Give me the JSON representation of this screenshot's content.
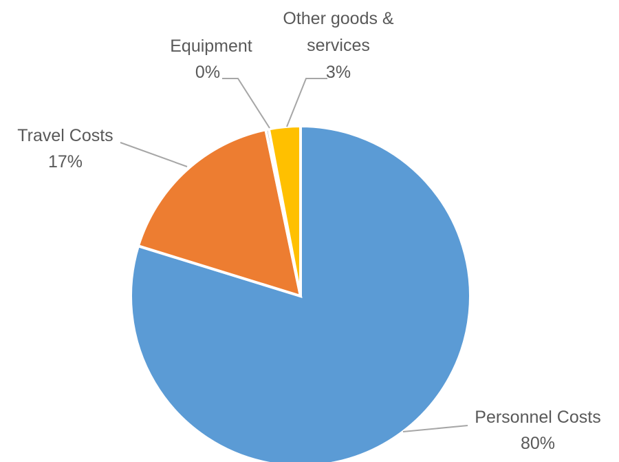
{
  "chart_data": {
    "type": "pie",
    "title": "",
    "slices": [
      {
        "name": "Personnel Costs",
        "value": 80,
        "label": "80%",
        "color": "#5B9BD5"
      },
      {
        "name": "Travel Costs",
        "value": 17,
        "label": "17%",
        "color": "#ED7D31"
      },
      {
        "name": "Equipment",
        "value": 0.3,
        "label": "0%",
        "color": "#A5A5A5"
      },
      {
        "name": "Other goods & services",
        "value": 3,
        "label": "3%",
        "color": "#FFC000"
      }
    ],
    "labels": {
      "personnel": {
        "line1": "Personnel Costs",
        "line2": "80%"
      },
      "travel": {
        "line1": "Travel Costs",
        "line2": "17%"
      },
      "equipment": {
        "line1": "Equipment",
        "line2": "0%"
      },
      "other": {
        "line1": "Other goods &",
        "line2": "services",
        "line3": "3%"
      }
    },
    "legend": "none",
    "start_angle": "12 o'clock",
    "direction": "clockwise"
  }
}
